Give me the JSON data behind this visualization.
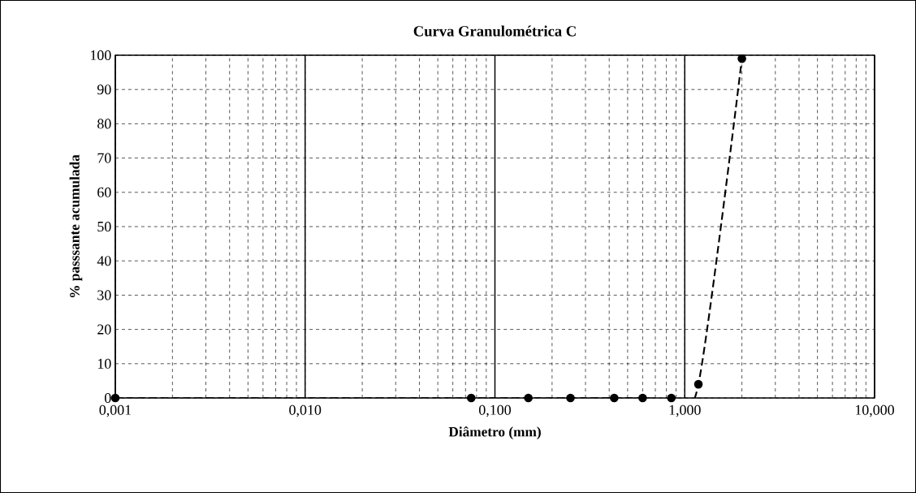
{
  "chart_data": {
    "type": "line",
    "title": "Curva Granulométrica C",
    "xlabel": "Diâmetro (mm)",
    "ylabel": "% passsante acumulada",
    "x": [
      0.001,
      0.075,
      0.15,
      0.25,
      0.425,
      0.6,
      0.85,
      1.18,
      2.0
    ],
    "series": [
      {
        "color": "#000000",
        "values": [
          0,
          0,
          0,
          0,
          0,
          0,
          0,
          4,
          99
        ]
      }
    ],
    "log": "x",
    "xlim": [
      0.001,
      10
    ],
    "ylim": [
      0,
      100
    ],
    "xticks": [
      {
        "value": 0.001,
        "label": "0,001"
      },
      {
        "value": 0.01,
        "label": "0,010"
      },
      {
        "value": 0.1,
        "label": "0,100"
      },
      {
        "value": 1,
        "label": "1,000"
      },
      {
        "value": 10,
        "label": "10,000"
      }
    ],
    "yticks": [
      0,
      10,
      20,
      30,
      40,
      50,
      60,
      70,
      80,
      90,
      100
    ],
    "grid": true,
    "marker": "circle",
    "line_style": "dashed"
  }
}
